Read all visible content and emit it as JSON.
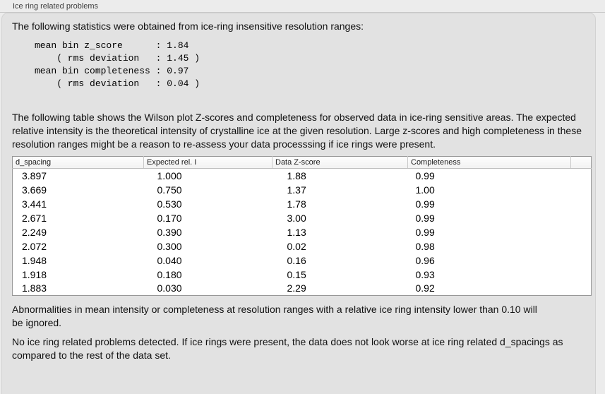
{
  "caption": "Ice ring related problems",
  "panel": {
    "intro": "The following statistics were obtained from ice-ring insensitive resolution ranges:",
    "stats_block": "mean bin z_score      : 1.84\n    ( rms deviation   : 1.45 )\nmean bin completeness : 0.97\n    ( rms deviation   : 0.04 )",
    "stats": {
      "mean_bin_z_score": "1.84",
      "z_score_rms_deviation": "1.45",
      "mean_bin_completeness": "0.97",
      "completeness_rms_deviation": "0.04"
    },
    "description": "The following table shows the Wilson plot Z-scores and completeness for observed data in ice-ring sensitive areas. The expected relative intensity is the theoretical intensity of crystalline ice at the given resolution. Large z-scores and high completeness in these resolution ranges might be a reason to re-assess your data processsing if ice rings were present.",
    "table": {
      "columns": [
        "d_spacing",
        "Expected rel. I",
        "Data Z-score",
        "Completeness"
      ],
      "rows": [
        [
          "3.897",
          "1.000",
          "1.88",
          "0.99"
        ],
        [
          "3.669",
          "0.750",
          "1.37",
          "1.00"
        ],
        [
          "3.441",
          "0.530",
          "1.78",
          "0.99"
        ],
        [
          "2.671",
          "0.170",
          "3.00",
          "0.99"
        ],
        [
          "2.249",
          "0.390",
          "1.13",
          "0.99"
        ],
        [
          "2.072",
          "0.300",
          "0.02",
          "0.98"
        ],
        [
          "1.948",
          "0.040",
          "0.16",
          "0.96"
        ],
        [
          "1.918",
          "0.180",
          "0.15",
          "0.93"
        ],
        [
          "1.883",
          "0.030",
          "2.29",
          "0.92"
        ]
      ]
    },
    "note": "Abnormalities in mean intensity or completeness at resolution ranges with a relative ice ring intensity lower than 0.10 will be ignored.",
    "conclusion": "No ice ring related problems detected. If ice rings were present, the data does not look worse at ice ring related d_spacings as compared to the rest of the data set."
  },
  "colors": {
    "page_bg": "#ececec",
    "panel_bg": "#e2e2e2",
    "panel_border": "#d2d2d2",
    "rule_line": "#c8c8c8",
    "table_border": "#979797",
    "header_divider": "#c9c9c9",
    "text_color": "#111111",
    "caption_color": "#3c3c3c",
    "table_bg": "#ffffff"
  }
}
